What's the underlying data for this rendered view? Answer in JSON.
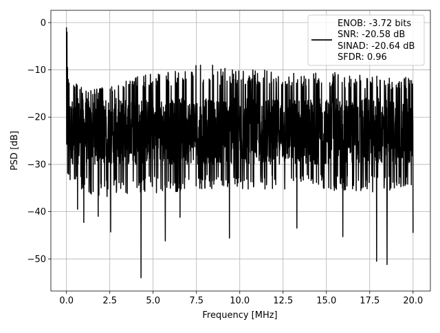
{
  "chart_data": {
    "type": "line",
    "title": "",
    "xlabel": "Frequency [MHz]",
    "ylabel": "PSD [dB]",
    "xlim": [
      -0.9,
      21.0
    ],
    "ylim": [
      -56.8,
      2.6
    ],
    "x_ticks": [
      0.0,
      2.5,
      5.0,
      7.5,
      10.0,
      12.5,
      15.0,
      17.5,
      20.0
    ],
    "x_tick_labels": [
      "0.0",
      "2.5",
      "5.0",
      "7.5",
      "10.0",
      "12.5",
      "15.0",
      "17.5",
      "20.0"
    ],
    "y_ticks": [
      0,
      -10,
      -20,
      -30,
      -40,
      -50
    ],
    "y_tick_labels": [
      "0",
      "−10",
      "−20",
      "−30",
      "−40",
      "−50"
    ],
    "grid": true,
    "legend_position": "top-right",
    "legend_lines": [
      "ENOB: -3.72 bits",
      "SNR: -20.58 dB",
      "SINAD: -20.64 dB",
      "SFDR: 0.96"
    ],
    "series": [
      {
        "color": "#000000",
        "x_range": [
          0.0,
          20.0
        ],
        "point_count": 2000,
        "peak_points": [
          [
            0.0,
            -1.0
          ],
          [
            0.03,
            -2.0
          ],
          [
            0.06,
            -9.5
          ],
          [
            0.1,
            -12.0
          ]
        ],
        "dip_points": [
          [
            0.05,
            -25.3
          ],
          [
            0.64,
            -39.5
          ],
          [
            1.0,
            -42.3
          ],
          [
            1.83,
            -41.0
          ],
          [
            2.55,
            -44.3
          ],
          [
            4.3,
            -54.0
          ],
          [
            5.7,
            -46.2
          ],
          [
            6.55,
            -41.2
          ],
          [
            9.4,
            -45.6
          ],
          [
            13.3,
            -43.5
          ],
          [
            15.95,
            -45.3
          ],
          [
            17.9,
            -50.5
          ],
          [
            18.5,
            -51.2
          ],
          [
            20.0,
            -44.5
          ]
        ],
        "envelope_upper": [
          [
            0.3,
            -11.5
          ],
          [
            1.0,
            -14.0
          ],
          [
            1.5,
            -14.0
          ],
          [
            2.5,
            -13.5
          ],
          [
            3.5,
            -12.0
          ],
          [
            4.5,
            -11.0
          ],
          [
            5.5,
            -10.5
          ],
          [
            6.5,
            -10.0
          ],
          [
            7.5,
            -9.0
          ],
          [
            8.5,
            -9.0
          ],
          [
            9.5,
            -9.5
          ],
          [
            10.5,
            -10.0
          ],
          [
            11.5,
            -10.0
          ],
          [
            12.5,
            -10.0
          ],
          [
            13.5,
            -10.5
          ],
          [
            14.5,
            -10.5
          ],
          [
            15.5,
            -10.5
          ],
          [
            16.5,
            -11.0
          ],
          [
            17.5,
            -11.0
          ],
          [
            18.5,
            -11.5
          ],
          [
            19.5,
            -11.5
          ],
          [
            20.0,
            -12.0
          ]
        ],
        "envelope_lower": [
          [
            0.3,
            -34.0
          ],
          [
            1.0,
            -36.0
          ],
          [
            2.0,
            -37.0
          ],
          [
            3.0,
            -36.5
          ],
          [
            4.0,
            -36.0
          ],
          [
            5.0,
            -36.0
          ],
          [
            6.0,
            -36.0
          ],
          [
            7.0,
            -35.5
          ],
          [
            8.0,
            -35.5
          ],
          [
            9.0,
            -35.5
          ],
          [
            10.0,
            -35.5
          ],
          [
            11.0,
            -35.5
          ],
          [
            12.0,
            -35.5
          ],
          [
            13.0,
            -35.5
          ],
          [
            14.0,
            -35.5
          ],
          [
            15.0,
            -35.5
          ],
          [
            16.0,
            -36.0
          ],
          [
            17.0,
            -36.0
          ],
          [
            18.0,
            -36.0
          ],
          [
            19.0,
            -35.5
          ],
          [
            20.0,
            -35.0
          ]
        ],
        "typical_range": [
          -30.0,
          -16.0
        ]
      }
    ]
  }
}
